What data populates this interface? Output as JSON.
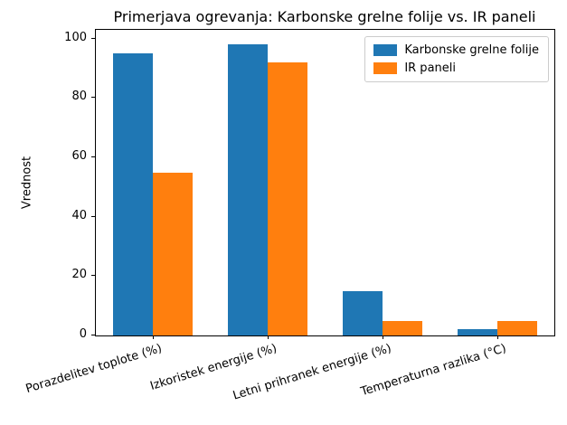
{
  "chart_data": {
    "type": "bar",
    "title": "Primerjava ogrevanja: Karbonske grelne folije vs. IR paneli",
    "ylabel": "Vrednost",
    "xlabel": "",
    "categories": [
      "Porazdelitev toplote (%)",
      "Izkoristek energije (%)",
      "Letni prihranek energije (%)",
      "Temperaturna razlika (°C)"
    ],
    "series": [
      {
        "name": "Karbonske grelne folije",
        "color": "#1f77b4",
        "values": [
          95,
          98,
          15,
          2
        ]
      },
      {
        "name": "IR paneli",
        "color": "#ff7f0e",
        "values": [
          55,
          92,
          5,
          5
        ]
      }
    ],
    "yticks": [
      0,
      20,
      40,
      60,
      80,
      100
    ],
    "ylim": [
      0,
      103
    ],
    "grid": false,
    "legend_position": "upper right",
    "background": "#ffffff",
    "axis_color": "#000000"
  }
}
